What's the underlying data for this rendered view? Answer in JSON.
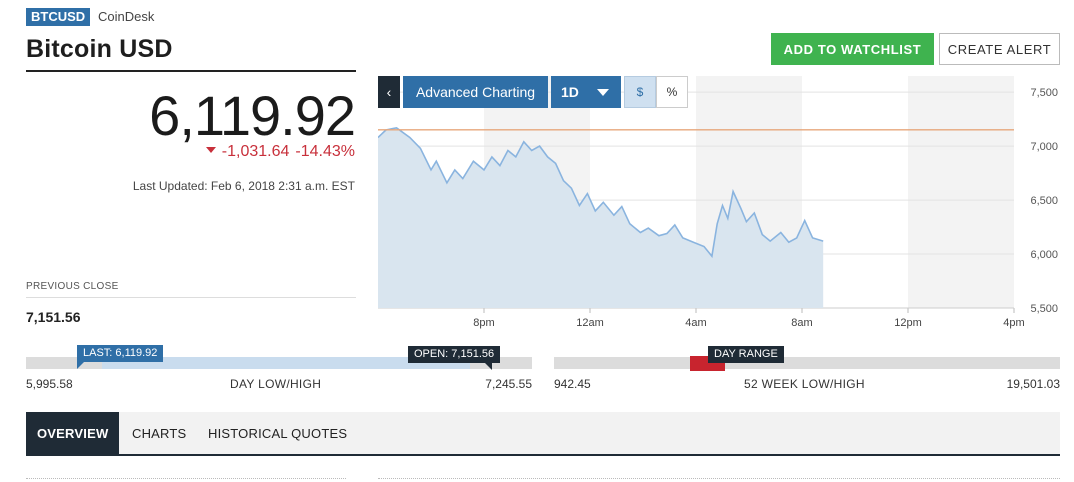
{
  "header": {
    "ticker": "BTCUSD",
    "source": "CoinDesk",
    "title": "Bitcoin USD"
  },
  "actions": {
    "watchlist_label": "ADD TO WATCHLIST",
    "alert_label": "CREATE ALERT"
  },
  "quote": {
    "price": "6,119.92",
    "change": "-1,031.64",
    "change_pct": "-14.43%",
    "last_updated": "Last Updated: Feb 6, 2018 2:31 a.m. EST",
    "previous_close_label": "PREVIOUS CLOSE",
    "previous_close": "7,151.56"
  },
  "chart_controls": {
    "back_label": "‹",
    "advanced_label": "Advanced Charting",
    "range_label": "1D",
    "dollar_label": "$",
    "percent_label": "%"
  },
  "chart_data": {
    "type": "area",
    "x_ticks": [
      "8pm",
      "12am",
      "4am",
      "8am",
      "12pm",
      "4pm"
    ],
    "y_ticks": [
      "7,500",
      "7,000",
      "6,500",
      "6,000",
      "5,500"
    ],
    "ylim": [
      5500,
      7650
    ],
    "reference_line": 7151.56,
    "series": [
      {
        "points": [
          [
            0,
            7080
          ],
          [
            0.15,
            7150
          ],
          [
            0.35,
            7170
          ],
          [
            0.6,
            7080
          ],
          [
            0.8,
            6980
          ],
          [
            1.0,
            6780
          ],
          [
            1.1,
            6860
          ],
          [
            1.3,
            6660
          ],
          [
            1.45,
            6780
          ],
          [
            1.6,
            6700
          ],
          [
            1.8,
            6860
          ],
          [
            2.0,
            6780
          ],
          [
            2.15,
            6900
          ],
          [
            2.3,
            6820
          ],
          [
            2.45,
            6960
          ],
          [
            2.6,
            6900
          ],
          [
            2.75,
            7040
          ],
          [
            2.9,
            6960
          ],
          [
            3.05,
            7000
          ],
          [
            3.2,
            6900
          ],
          [
            3.35,
            6840
          ],
          [
            3.5,
            6680
          ],
          [
            3.65,
            6610
          ],
          [
            3.8,
            6450
          ],
          [
            3.95,
            6560
          ],
          [
            4.1,
            6400
          ],
          [
            4.25,
            6480
          ],
          [
            4.45,
            6360
          ],
          [
            4.6,
            6440
          ],
          [
            4.75,
            6280
          ],
          [
            4.95,
            6200
          ],
          [
            5.1,
            6240
          ],
          [
            5.3,
            6170
          ],
          [
            5.45,
            6190
          ],
          [
            5.6,
            6270
          ],
          [
            5.75,
            6150
          ],
          [
            5.95,
            6110
          ],
          [
            6.15,
            6070
          ],
          [
            6.3,
            5980
          ],
          [
            6.4,
            6280
          ],
          [
            6.5,
            6450
          ],
          [
            6.6,
            6330
          ],
          [
            6.7,
            6580
          ],
          [
            6.85,
            6420
          ],
          [
            6.95,
            6300
          ],
          [
            7.1,
            6380
          ],
          [
            7.25,
            6180
          ],
          [
            7.4,
            6120
          ],
          [
            7.6,
            6200
          ],
          [
            7.75,
            6110
          ],
          [
            7.9,
            6150
          ],
          [
            8.05,
            6310
          ],
          [
            8.2,
            6150
          ],
          [
            8.4,
            6120
          ]
        ]
      }
    ],
    "grid": true
  },
  "ranges": {
    "day_low": "5,995.58",
    "day_high": "7,245.55",
    "day_label": "DAY LOW/HIGH",
    "last_flag": "LAST: 6,119.92",
    "open_flag": "OPEN: 7,151.56",
    "day_fill_pct": 0.15,
    "week_low": "942.45",
    "week_high": "19,501.03",
    "week_label": "52 WEEK LOW/HIGH",
    "day_range_flag": "DAY RANGE",
    "week_marker_pct": 0.27
  },
  "tabs": [
    {
      "label": "OVERVIEW"
    },
    {
      "label": "CHARTS"
    },
    {
      "label": "HISTORICAL QUOTES"
    }
  ],
  "colors": {
    "accent_blue": "#2f6fa7",
    "navy": "#1f2b36",
    "green": "#3fb34f",
    "negative_red": "#c8303b",
    "chart_line": "#8ab4df",
    "chart_fill": "#d9e5ef",
    "reference_line": "#e7a77b"
  }
}
